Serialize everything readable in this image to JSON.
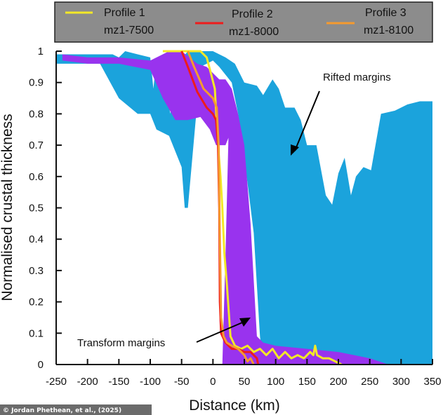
{
  "chart_data": {
    "type": "area",
    "xlabel": "Distance (km)",
    "ylabel": "Normalised crustal thickness",
    "xlim": [
      -250,
      350
    ],
    "ylim": [
      0,
      1
    ],
    "xticks": [
      -250,
      -200,
      -150,
      -100,
      -50,
      0,
      50,
      100,
      150,
      200,
      250,
      300,
      350
    ],
    "yticks": [
      0,
      0.1,
      0.2,
      0.3,
      0.4,
      0.5,
      0.6,
      0.7,
      0.8,
      0.9,
      1
    ],
    "ytick_labels": [
      "0",
      "0.1",
      "0.2",
      "0.3",
      "0.4",
      "0.5",
      "0.6",
      "0.7",
      "0.8",
      "0.9",
      "1"
    ],
    "bands": [
      {
        "name": "Rifted margins",
        "color": "#1ba3dc",
        "upper": [
          [
            -250,
            0.99
          ],
          [
            -200,
            0.99
          ],
          [
            -160,
            0.99
          ],
          [
            -150,
            0.98
          ],
          [
            -140,
            1
          ],
          [
            -120,
            0.99
          ],
          [
            -100,
            0.98
          ],
          [
            -95,
            0.88
          ],
          [
            -90,
            0.98
          ],
          [
            -75,
            0.88
          ],
          [
            -68,
            0.8
          ],
          [
            -60,
            0.95
          ],
          [
            -40,
            1
          ],
          [
            -30,
            1
          ],
          [
            0,
            1
          ],
          [
            20,
            0.98
          ],
          [
            35,
            0.96
          ],
          [
            50,
            0.9
          ],
          [
            70,
            0.89
          ],
          [
            80,
            0.86
          ],
          [
            95,
            0.91
          ],
          [
            105,
            0.88
          ],
          [
            115,
            0.82
          ],
          [
            130,
            0.82
          ],
          [
            140,
            0.78
          ],
          [
            150,
            0.7
          ],
          [
            165,
            0.7
          ],
          [
            180,
            0.54
          ],
          [
            190,
            0.51
          ],
          [
            200,
            0.61
          ],
          [
            210,
            0.66
          ],
          [
            220,
            0.54
          ],
          [
            228,
            0.6
          ],
          [
            240,
            0.63
          ],
          [
            252,
            0.62
          ],
          [
            268,
            0.8
          ],
          [
            290,
            0.81
          ],
          [
            310,
            0.83
          ],
          [
            330,
            0.84
          ],
          [
            350,
            0.84
          ]
        ],
        "lower": [
          [
            350,
            0
          ],
          [
            80,
            0
          ],
          [
            75,
            0.09
          ],
          [
            65,
            0.42
          ],
          [
            55,
            0.58
          ],
          [
            40,
            0.8
          ],
          [
            30,
            0.9
          ],
          [
            10,
            0.95
          ],
          [
            0,
            0.97
          ],
          [
            -20,
            0.95
          ],
          [
            -40,
            0.5
          ],
          [
            -45,
            0.5
          ],
          [
            -50,
            0.63
          ],
          [
            -70,
            0.73
          ],
          [
            -90,
            0.75
          ],
          [
            -100,
            0.8
          ],
          [
            -120,
            0.8
          ],
          [
            -150,
            0.85
          ],
          [
            -180,
            0.96
          ],
          [
            -250,
            0.96
          ]
        ]
      },
      {
        "name": "Transform margins",
        "color": "#9933ee",
        "upper": [
          [
            -240,
            0.99
          ],
          [
            -200,
            0.98
          ],
          [
            -150,
            0.98
          ],
          [
            -100,
            0.97
          ],
          [
            -70,
            1
          ],
          [
            -50,
            1
          ],
          [
            -25,
            0.96
          ],
          [
            -10,
            0.95
          ],
          [
            0,
            0.93
          ],
          [
            10,
            0.91
          ],
          [
            20,
            0.91
          ],
          [
            30,
            0.88
          ],
          [
            40,
            0.8
          ],
          [
            50,
            0.7
          ],
          [
            60,
            0.45
          ],
          [
            70,
            0.09
          ],
          [
            80,
            0.07
          ],
          [
            100,
            0.06
          ],
          [
            150,
            0.05
          ],
          [
            200,
            0.04
          ],
          [
            250,
            0.02
          ],
          [
            280,
            0
          ]
        ],
        "lower": [
          [
            270,
            0
          ],
          [
            15,
            0
          ],
          [
            20,
            0.35
          ],
          [
            25,
            0.75
          ],
          [
            30,
            0.75
          ],
          [
            20,
            0.7
          ],
          [
            5,
            0.7
          ],
          [
            -5,
            0.75
          ],
          [
            -20,
            0.79
          ],
          [
            -40,
            0.78
          ],
          [
            -60,
            0.78
          ],
          [
            -80,
            0.85
          ],
          [
            -100,
            0.94
          ],
          [
            -150,
            0.96
          ],
          [
            -200,
            0.96
          ],
          [
            -240,
            0.97
          ]
        ]
      }
    ],
    "series": [
      {
        "name": "Profile 1",
        "id": "mz1-7500",
        "color": "#f3e827",
        "points": [
          [
            -80,
            1
          ],
          [
            -30,
            1
          ],
          [
            -20,
            1
          ],
          [
            -10,
            0.98
          ],
          [
            -2,
            0.92
          ],
          [
            3,
            0.88
          ],
          [
            8,
            0.7
          ],
          [
            12,
            0.6
          ],
          [
            15,
            0.5
          ],
          [
            18,
            0.36
          ],
          [
            22,
            0.26
          ],
          [
            28,
            0.09
          ],
          [
            35,
            0.06
          ],
          [
            45,
            0.05
          ],
          [
            55,
            0.06
          ],
          [
            65,
            0.04
          ],
          [
            75,
            0.05
          ],
          [
            85,
            0.03
          ],
          [
            95,
            0.05
          ],
          [
            105,
            0.02
          ],
          [
            115,
            0.04
          ],
          [
            125,
            0.02
          ],
          [
            135,
            0.03
          ],
          [
            145,
            0.02
          ],
          [
            155,
            0.04
          ],
          [
            160,
            0.03
          ],
          [
            163,
            0.06
          ],
          [
            166,
            0.03
          ],
          [
            175,
            0.02
          ],
          [
            185,
            0.02
          ],
          [
            195,
            0.01
          ],
          [
            205,
            0
          ]
        ]
      },
      {
        "name": "Profile 2",
        "id": "mz1-8000",
        "color": "#ee1c1c",
        "points": [
          [
            -50,
            1
          ],
          [
            -40,
            0.95
          ],
          [
            -25,
            0.87
          ],
          [
            -10,
            0.82
          ],
          [
            0,
            0.8
          ],
          [
            5,
            0.78
          ],
          [
            8,
            0.7
          ],
          [
            10,
            0.5
          ],
          [
            11,
            0.2
          ],
          [
            13,
            0.1
          ],
          [
            20,
            0.07
          ],
          [
            30,
            0.05
          ],
          [
            40,
            0.05
          ],
          [
            50,
            0.04
          ],
          [
            60,
            0.04
          ],
          [
            70,
            0.02
          ],
          [
            72,
            0
          ]
        ]
      },
      {
        "name": "Profile 3",
        "id": "mz1-8100",
        "color": "#f59a2e",
        "points": [
          [
            -40,
            1
          ],
          [
            -30,
            0.95
          ],
          [
            -15,
            0.88
          ],
          [
            0,
            0.85
          ],
          [
            6,
            0.82
          ],
          [
            9,
            0.7
          ],
          [
            11,
            0.4
          ],
          [
            13,
            0.15
          ],
          [
            17,
            0.09
          ],
          [
            22,
            0.07
          ],
          [
            30,
            0.06
          ],
          [
            40,
            0.05
          ],
          [
            50,
            0.03
          ],
          [
            55,
            0.01
          ],
          [
            60,
            0.02
          ],
          [
            65,
            0
          ]
        ]
      }
    ],
    "annotations": [
      {
        "text": "Rifted margins",
        "at": [
          45,
          0.8
        ],
        "position": "upper-right"
      },
      {
        "text": "Transform margins",
        "at": [
          50,
          0.15
        ],
        "position": "lower-left"
      }
    ]
  },
  "legend": {
    "items": [
      {
        "name": "Profile 1",
        "id": "mz1-7500",
        "color": "#f3e827"
      },
      {
        "name": "Profile 2",
        "id": "mz1-8000",
        "color": "#ee1c1c"
      },
      {
        "name": "Profile 3",
        "id": "mz1-8100",
        "color": "#f59a2e"
      }
    ]
  },
  "credit": "© Jordan Phethean, et al., (2025)"
}
